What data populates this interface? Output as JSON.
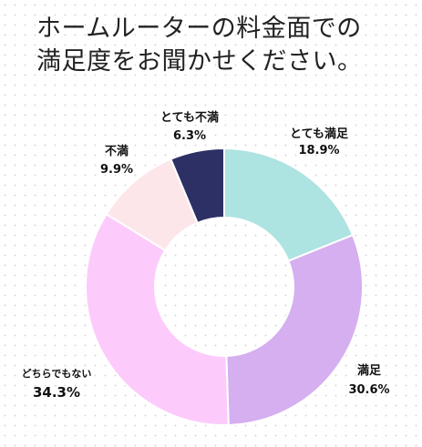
{
  "chart_data": {
    "type": "pie",
    "title_lines": [
      "ホームルーターの料金面での",
      "満足度をお聞かせください。"
    ],
    "categories": [
      "とても満足",
      "満足",
      "どちらでもない",
      "不満",
      "とても不満"
    ],
    "values": [
      18.9,
      30.6,
      34.3,
      9.9,
      6.3
    ],
    "value_labels": [
      "18.9%",
      "30.6%",
      "34.3%",
      "9.9%",
      "6.3%"
    ],
    "colors": [
      "#ade3e1",
      "#d5aff0",
      "#fccbfb",
      "#fde6ea",
      "#2c3064"
    ],
    "donut": true,
    "legend": "none"
  }
}
